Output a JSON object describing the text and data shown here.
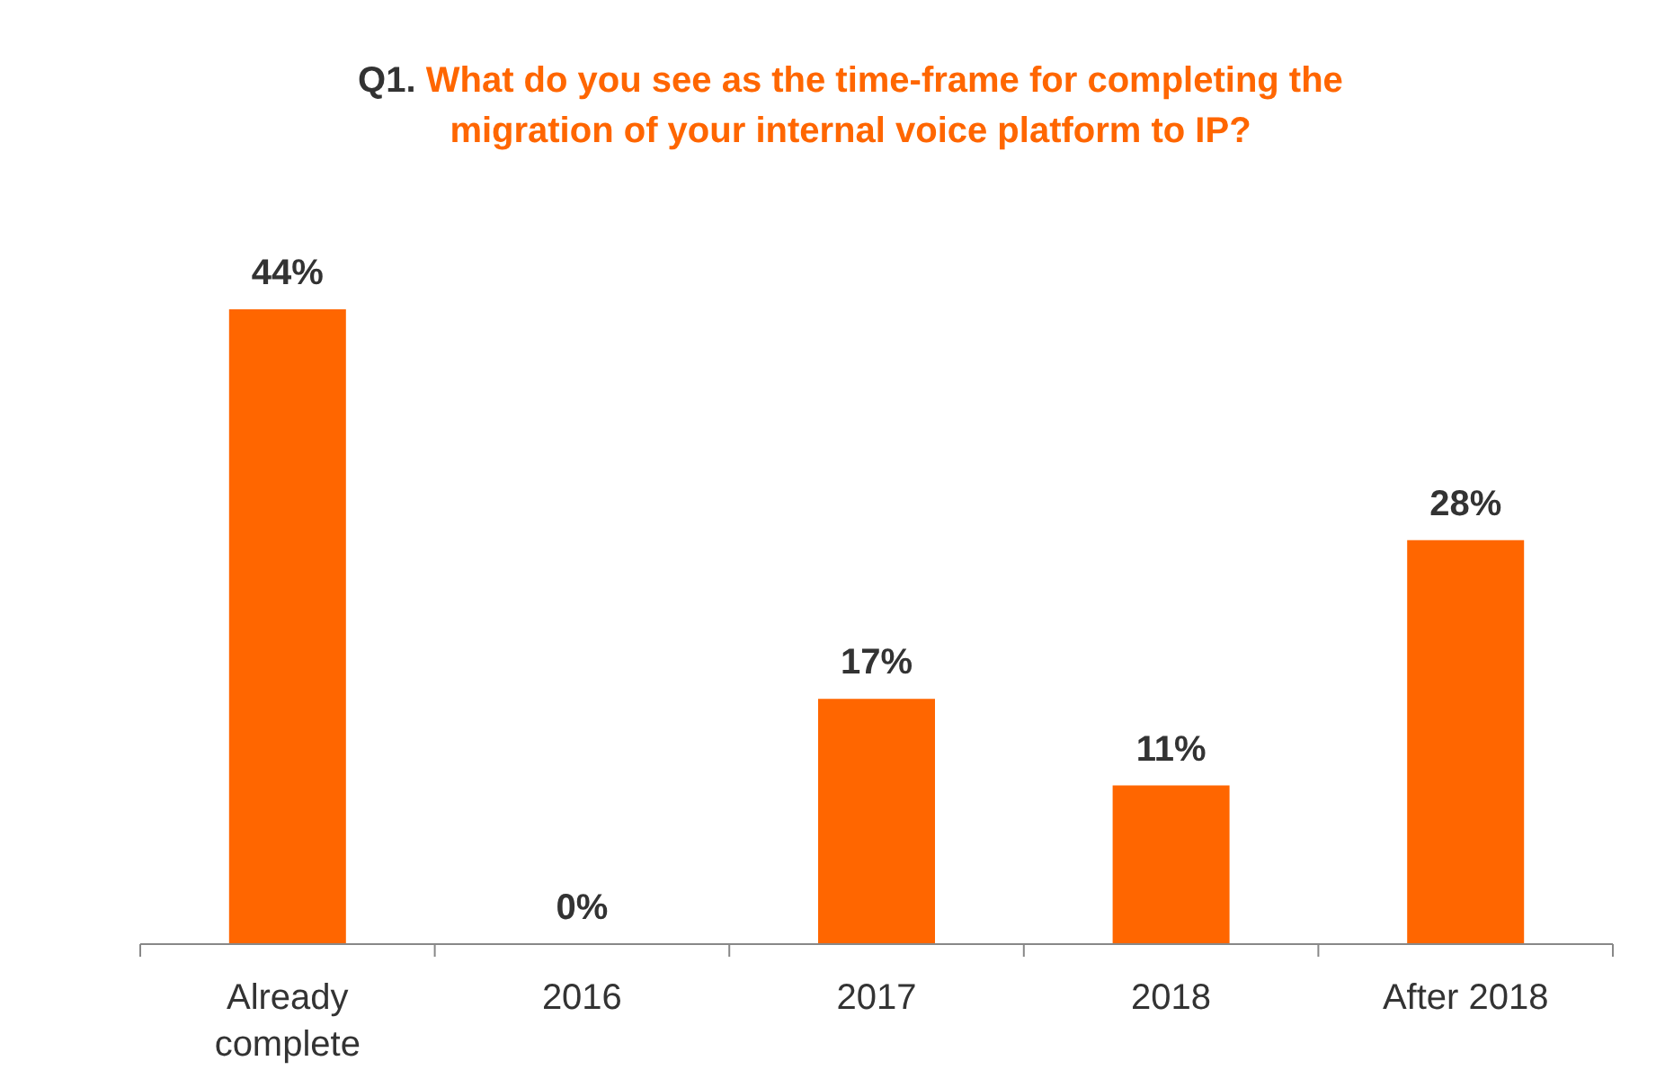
{
  "chart_data": {
    "type": "bar",
    "title": "Q1. What do you see as the time-frame for completing the migration of your internal voice platform to IP?",
    "categories": [
      "Already complete",
      "2016",
      "2017",
      "2018",
      "After 2018"
    ],
    "values": [
      44,
      0,
      17,
      11,
      28
    ],
    "value_labels": [
      "44%",
      "0%",
      "17%",
      "11%",
      "28%"
    ],
    "color": "#ff6600"
  }
}
